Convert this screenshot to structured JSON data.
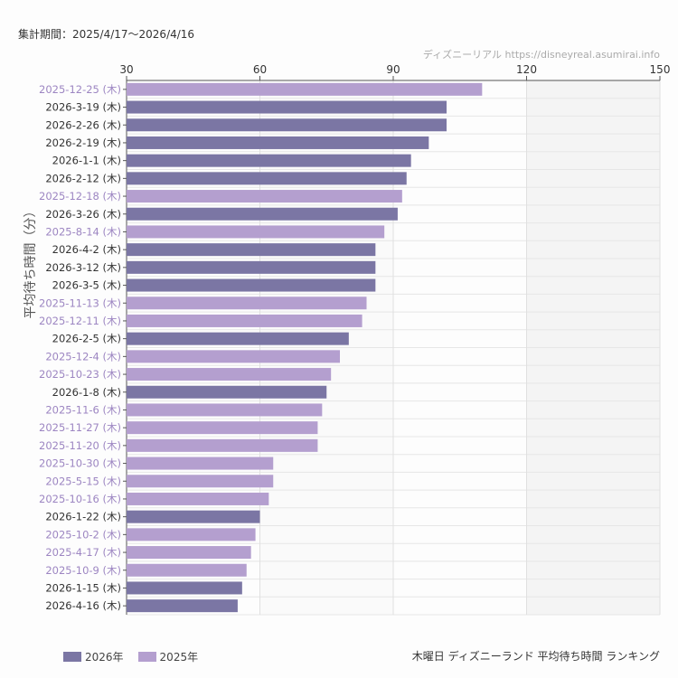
{
  "header": {
    "period": "集計期間：2025/4/17～2026/4/16",
    "credit": "ディズニーリアル https://disneyreal.asumirai.info"
  },
  "footer": {
    "title": "木曜日 ディズニーランド 平均待ち時間 ランキング"
  },
  "chart_data": {
    "type": "bar",
    "orientation": "horizontal",
    "title": "木曜日 ディズニーランド 平均待ち時間 ランキング",
    "ylabel": "平均待ち時間（分）",
    "xlim": [
      30,
      150
    ],
    "xticks": [
      30,
      60,
      90,
      120,
      150
    ],
    "grid": true,
    "legend_position": "bottom-left",
    "colors": {
      "2026年": "#7b76a4",
      "2025年": "#b49fcf"
    },
    "legend": [
      "2026年",
      "2025年"
    ],
    "categories": [
      "2025-12-25 (木)",
      "2026-3-19 (木)",
      "2026-2-26 (木)",
      "2026-2-19 (木)",
      "2026-1-1 (木)",
      "2026-2-12 (木)",
      "2025-12-18 (木)",
      "2026-3-26 (木)",
      "2025-8-14 (木)",
      "2026-4-2 (木)",
      "2026-3-12 (木)",
      "2026-3-5 (木)",
      "2025-11-13 (木)",
      "2025-12-11 (木)",
      "2026-2-5 (木)",
      "2025-12-4 (木)",
      "2025-10-23 (木)",
      "2026-1-8 (木)",
      "2025-11-6 (木)",
      "2025-11-27 (木)",
      "2025-11-20 (木)",
      "2025-10-30 (木)",
      "2025-5-15 (木)",
      "2025-10-16 (木)",
      "2026-1-22 (木)",
      "2025-10-2 (木)",
      "2025-4-17 (木)",
      "2025-10-9 (木)",
      "2026-1-15 (木)",
      "2026-4-16 (木)"
    ],
    "values": [
      110,
      102,
      102,
      98,
      94,
      93,
      92,
      91,
      88,
      86,
      86,
      86,
      84,
      83,
      80,
      78,
      76,
      75,
      74,
      73,
      73,
      63,
      63,
      62,
      60,
      59,
      58,
      57,
      56,
      55
    ],
    "series_of": [
      "2025年",
      "2026年",
      "2026年",
      "2026年",
      "2026年",
      "2026年",
      "2025年",
      "2026年",
      "2025年",
      "2026年",
      "2026年",
      "2026年",
      "2025年",
      "2025年",
      "2026年",
      "2025年",
      "2025年",
      "2026年",
      "2025年",
      "2025年",
      "2025年",
      "2025年",
      "2025年",
      "2025年",
      "2026年",
      "2025年",
      "2025年",
      "2025年",
      "2026年",
      "2026年"
    ]
  }
}
